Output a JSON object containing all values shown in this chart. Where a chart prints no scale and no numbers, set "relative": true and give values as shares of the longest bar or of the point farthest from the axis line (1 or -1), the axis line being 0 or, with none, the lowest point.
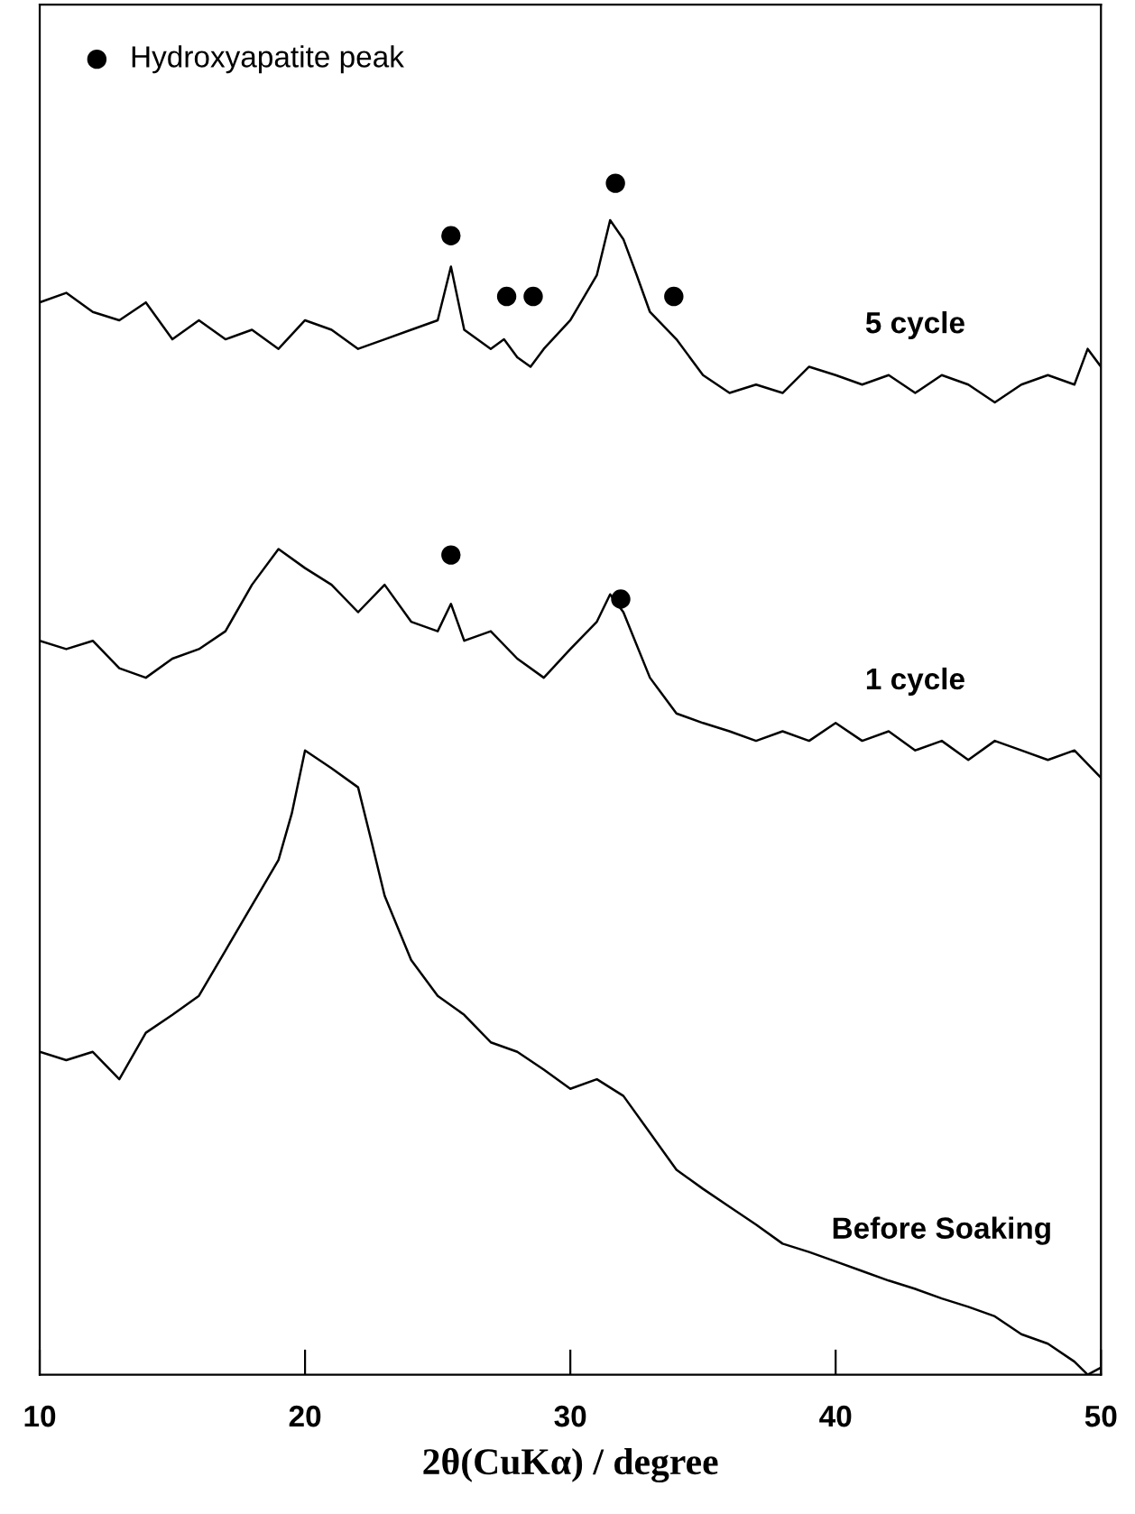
{
  "chart_data": {
    "type": "line",
    "relative": true,
    "xlabel": "2θ(CuKα) / degree",
    "xlim": [
      10,
      50
    ],
    "xticks": [
      10,
      20,
      30,
      40,
      50
    ],
    "tick_labels": "x",
    "grid": false,
    "legend": "top left",
    "marker": "none",
    "line_style": "solid",
    "series": [
      {
        "name": "5 cycle",
        "color": "#000000",
        "x": [
          10,
          11,
          12,
          13,
          14,
          15,
          16,
          17,
          18,
          19,
          20,
          21,
          22,
          23,
          24,
          25,
          25.5,
          26,
          27,
          27.5,
          28,
          28.5,
          29,
          30,
          31,
          31.5,
          32,
          32.5,
          33,
          34,
          35,
          36,
          37,
          38,
          39,
          40,
          41,
          42,
          43,
          44,
          45,
          46,
          47,
          48,
          49,
          49.5,
          50
        ],
        "values": [
          0.9,
          0.908,
          0.892,
          0.885,
          0.9,
          0.869,
          0.885,
          0.869,
          0.877,
          0.861,
          0.885,
          0.877,
          0.861,
          0.869,
          0.877,
          0.885,
          0.93,
          0.877,
          0.861,
          0.869,
          0.854,
          0.846,
          0.861,
          0.885,
          0.923,
          0.969,
          0.953,
          0.923,
          0.892,
          0.869,
          0.839,
          0.824,
          0.831,
          0.824,
          0.846,
          0.839,
          0.831,
          0.839,
          0.824,
          0.839,
          0.831,
          0.816,
          0.831,
          0.839,
          0.831,
          0.861,
          0.846
        ]
      },
      {
        "name": "1 cycle",
        "color": "#000000",
        "x": [
          10,
          11,
          12,
          13,
          14,
          15,
          16,
          17,
          18,
          19,
          20,
          21,
          22,
          23,
          24,
          25,
          25.5,
          26,
          27,
          28,
          29,
          30,
          31,
          31.5,
          32,
          33,
          34,
          35,
          36,
          37,
          38,
          39,
          40,
          41,
          42,
          43,
          44,
          45,
          46,
          47,
          48,
          49,
          50
        ],
        "values": [
          0.616,
          0.609,
          0.616,
          0.593,
          0.585,
          0.601,
          0.609,
          0.624,
          0.663,
          0.693,
          0.677,
          0.663,
          0.64,
          0.663,
          0.632,
          0.624,
          0.647,
          0.616,
          0.624,
          0.601,
          0.585,
          0.609,
          0.632,
          0.655,
          0.64,
          0.585,
          0.555,
          0.547,
          0.54,
          0.532,
          0.54,
          0.532,
          0.547,
          0.532,
          0.54,
          0.524,
          0.532,
          0.516,
          0.532,
          0.524,
          0.516,
          0.524,
          0.501
        ]
      },
      {
        "name": "Before Soaking",
        "color": "#000000",
        "x": [
          10,
          11,
          12,
          13,
          14,
          15,
          16,
          17,
          18,
          19,
          19.5,
          20,
          21,
          22,
          22.5,
          23,
          24,
          25,
          26,
          27,
          28,
          29,
          30,
          31,
          32,
          33,
          34,
          35,
          36,
          37,
          38,
          39,
          40,
          41,
          42,
          43,
          44,
          45,
          46,
          47,
          48,
          49,
          49.5,
          50
        ],
        "values": [
          0.271,
          0.264,
          0.271,
          0.248,
          0.287,
          0.302,
          0.318,
          0.356,
          0.394,
          0.432,
          0.471,
          0.524,
          0.509,
          0.493,
          0.448,
          0.402,
          0.348,
          0.318,
          0.302,
          0.279,
          0.271,
          0.256,
          0.24,
          0.248,
          0.234,
          0.203,
          0.172,
          0.156,
          0.141,
          0.126,
          0.11,
          0.103,
          0.095,
          0.087,
          0.079,
          0.072,
          0.064,
          0.057,
          0.049,
          0.034,
          0.026,
          0.011,
          0,
          0.006
        ]
      },
      {
        "name": "Hydroxyapatite peak",
        "type": "scatter",
        "marker": "circle",
        "color": "#000000",
        "x": [
          25.5,
          27.6,
          28.6,
          31.7,
          33.9,
          25.5,
          31.9
        ],
        "values": [
          0.956,
          0.905,
          0.905,
          1,
          0.905,
          0.688,
          0.651
        ]
      }
    ]
  }
}
